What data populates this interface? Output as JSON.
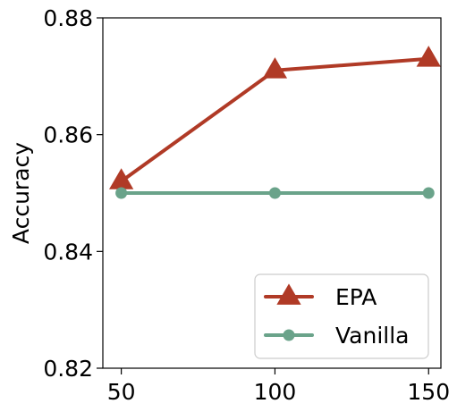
{
  "chart_data": {
    "type": "line",
    "title": "",
    "xlabel": "",
    "ylabel": "Accuracy",
    "x": [
      50,
      100,
      150
    ],
    "xlim": [
      44,
      154
    ],
    "ylim": [
      0.82,
      0.88
    ],
    "xticks": [
      "50",
      "100",
      "150"
    ],
    "yticks": [
      "0.82",
      "0.84",
      "0.86",
      "0.88"
    ],
    "grid": false,
    "legend_position": "bottom-right",
    "series": [
      {
        "name": "EPA",
        "values": [
          0.852,
          0.871,
          0.873
        ],
        "color": "#b03a26",
        "marker": "triangle"
      },
      {
        "name": "Vanilla",
        "values": [
          0.85,
          0.85,
          0.85
        ],
        "color": "#6aa38a",
        "marker": "circle"
      }
    ]
  }
}
